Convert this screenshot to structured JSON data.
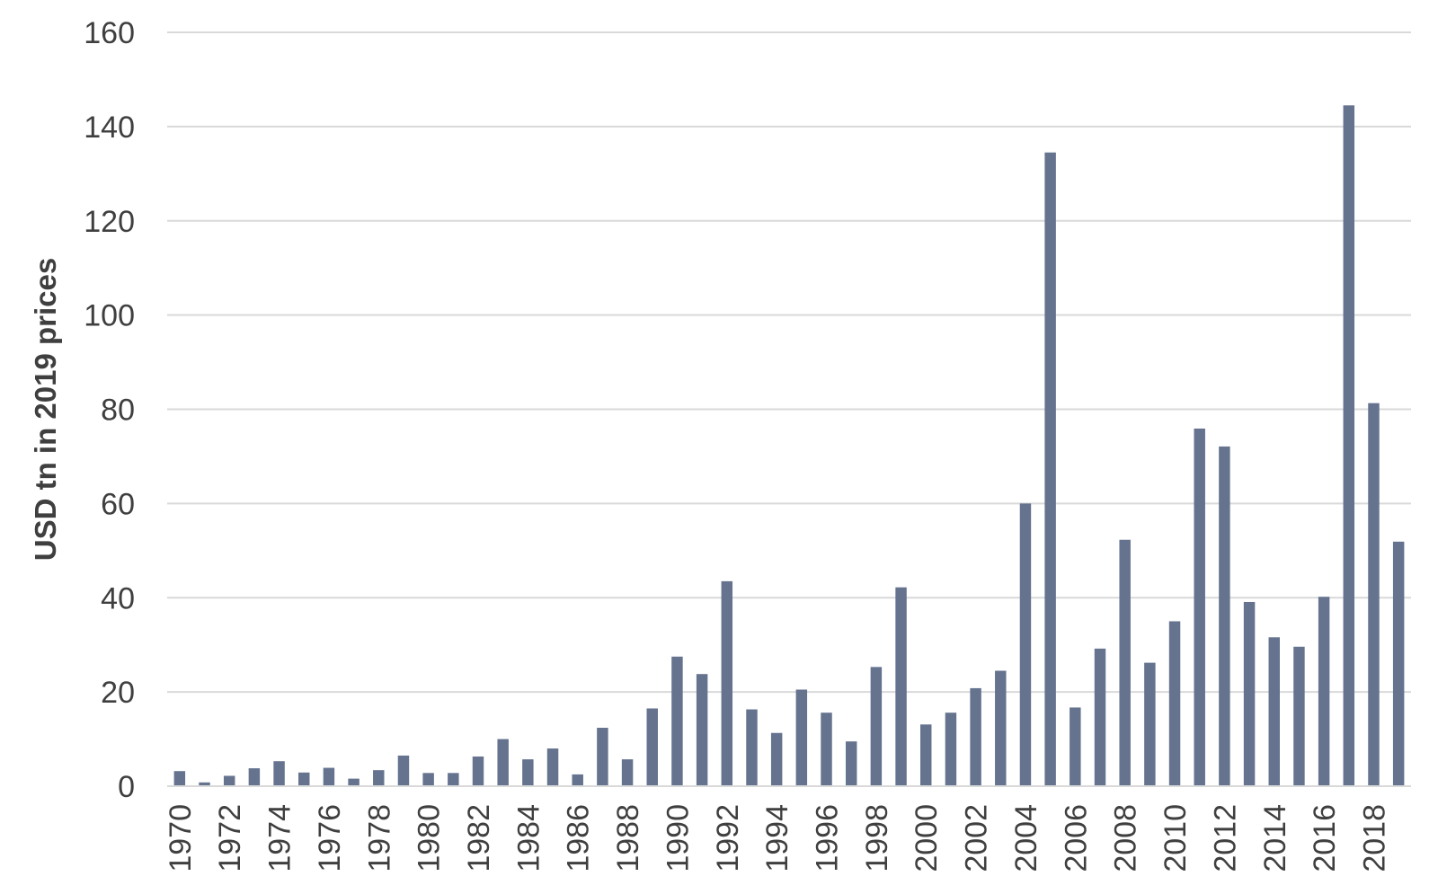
{
  "chart_data": {
    "type": "bar",
    "ylabel": "USD tn in 2019 prices",
    "xlabel": "",
    "ylim": [
      0,
      160
    ],
    "yticks": [
      0,
      20,
      40,
      60,
      80,
      100,
      120,
      140,
      160
    ],
    "grid": true,
    "legend": "none",
    "bar_color": "#65738f",
    "categories": [
      "1970",
      "1971",
      "1972",
      "1973",
      "1974",
      "1975",
      "1976",
      "1977",
      "1978",
      "1979",
      "1980",
      "1981",
      "1982",
      "1983",
      "1984",
      "1985",
      "1986",
      "1987",
      "1988",
      "1989",
      "1990",
      "1991",
      "1992",
      "1993",
      "1994",
      "1995",
      "1996",
      "1997",
      "1998",
      "1999",
      "2000",
      "2001",
      "2002",
      "2003",
      "2004",
      "2005",
      "2006",
      "2007",
      "2008",
      "2009",
      "2010",
      "2011",
      "2012",
      "2013",
      "2014",
      "2015",
      "2016",
      "2017",
      "2018",
      "2019"
    ],
    "tick_labels": [
      "1970",
      "1972",
      "1974",
      "1976",
      "1978",
      "1980",
      "1982",
      "1984",
      "1986",
      "1988",
      "1990",
      "1992",
      "1994",
      "1996",
      "1998",
      "2000",
      "2002",
      "2004",
      "2006",
      "2008",
      "2010",
      "2012",
      "2014",
      "2016",
      "2018"
    ],
    "values": [
      3.2,
      0.8,
      2.2,
      3.8,
      5.3,
      2.9,
      3.9,
      1.6,
      3.4,
      6.5,
      2.8,
      2.8,
      6.3,
      10.0,
      5.7,
      8.0,
      2.5,
      12.4,
      5.7,
      16.5,
      27.5,
      23.8,
      43.5,
      16.3,
      11.3,
      20.5,
      15.6,
      9.5,
      25.3,
      42.2,
      13.1,
      15.6,
      20.8,
      24.5,
      60.0,
      134.5,
      16.7,
      29.2,
      52.3,
      26.2,
      35.0,
      75.9,
      72.1,
      39.1,
      31.6,
      29.6,
      40.2,
      144.5,
      81.3,
      51.9
    ]
  }
}
